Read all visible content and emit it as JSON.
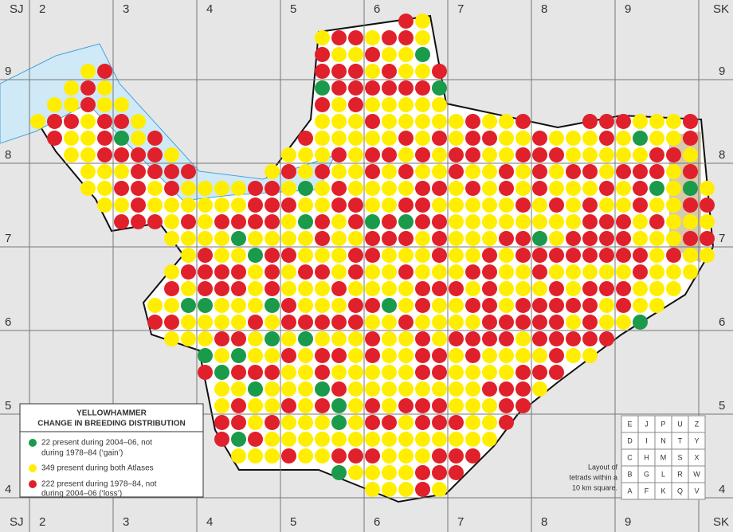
{
  "grid_labels": {
    "top": [
      "SJ",
      "2",
      "3",
      "4",
      "5",
      "6",
      "7",
      "8",
      "9",
      "SK"
    ],
    "bottom": [
      "SJ",
      "2",
      "3",
      "4",
      "5",
      "6",
      "7",
      "8",
      "9",
      "SK"
    ],
    "left": [
      "9",
      "8",
      "7",
      "6",
      "5",
      "4"
    ],
    "right": [
      "9",
      "8",
      "7",
      "6",
      "5",
      "4"
    ]
  },
  "legend": {
    "title": [
      "YELLOWHAMMER",
      "CHANGE IN BREEDING DISTRIBUTION"
    ],
    "items": [
      {
        "lines": [
          "22 present during 2004–06, not",
          "during 1978–84 (‘gain’)"
        ]
      },
      {
        "lines": [
          "349 present during both Atlases"
        ]
      },
      {
        "lines": [
          "222 present during 1978–84, not",
          "during 2004–06 (‘loss’)"
        ]
      }
    ]
  },
  "tetrad_key": {
    "rows": [
      [
        "E",
        "J",
        "P",
        "U",
        "Z"
      ],
      [
        "D",
        "I",
        "N",
        "T",
        "Y"
      ],
      [
        "C",
        "H",
        "M",
        "S",
        "X"
      ],
      [
        "B",
        "G",
        "L",
        "R",
        "W"
      ],
      [
        "A",
        "F",
        "K",
        "Q",
        "V"
      ]
    ],
    "caption": [
      "Layout of",
      "tetrads within a",
      "10 km square."
    ]
  }
}
